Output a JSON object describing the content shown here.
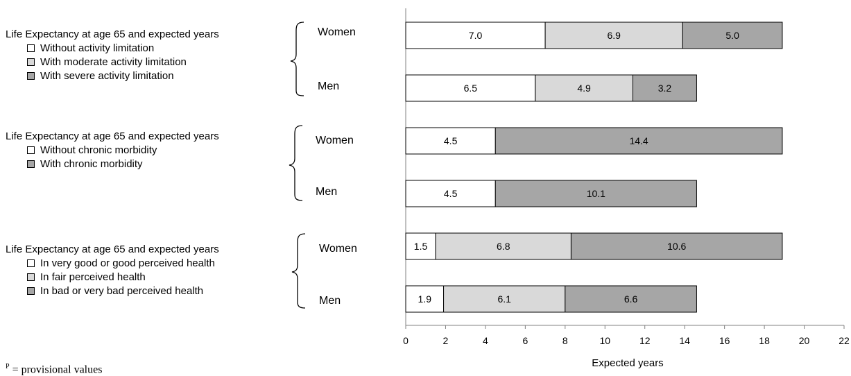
{
  "legend_groups": [
    {
      "title": "Life Expectancy at age 65 and expected years",
      "items": [
        {
          "label": "Without activity limitation",
          "color": "#ffffff"
        },
        {
          "label": "With moderate activity limitation",
          "color": "#d9d9d9"
        },
        {
          "label": "With severe activity limitation",
          "color": "#a6a6a6"
        }
      ]
    },
    {
      "title": "Life Expectancy at age 65 and expected years",
      "items": [
        {
          "label": "Without chronic morbidity",
          "color": "#ffffff"
        },
        {
          "label": "With chronic morbidity",
          "color": "#a6a6a6"
        }
      ]
    },
    {
      "title": "Life Expectancy at age 65 and expected years",
      "items": [
        {
          "label": "In very good or good perceived health",
          "color": "#ffffff"
        },
        {
          "label": "In fair perceived health",
          "color": "#d9d9d9"
        },
        {
          "label": "In bad or very bad perceived health",
          "color": "#a6a6a6"
        }
      ]
    }
  ],
  "footnote": {
    "marker": "P",
    "text": "= provisional values"
  },
  "chart_data": {
    "type": "bar",
    "orientation": "horizontal",
    "stacked": true,
    "xlabel": "Expected years",
    "xlim": [
      0,
      22
    ],
    "xticks": [
      "0",
      "2",
      "4",
      "6",
      "8",
      "10",
      "12",
      "14",
      "16",
      "18",
      "20",
      "22"
    ],
    "grid": false,
    "rows": [
      {
        "group": 0,
        "label": "Women",
        "values": [
          7.0,
          6.9,
          5.0
        ],
        "colors": [
          "#ffffff",
          "#d9d9d9",
          "#a6a6a6"
        ],
        "value_labels": [
          "7.0",
          "6.9",
          "5.0"
        ]
      },
      {
        "group": 0,
        "label": "Men",
        "values": [
          6.5,
          4.9,
          3.2
        ],
        "colors": [
          "#ffffff",
          "#d9d9d9",
          "#a6a6a6"
        ],
        "value_labels": [
          "6.5",
          "4.9",
          "3.2"
        ]
      },
      {
        "group": 1,
        "label": "Women",
        "values": [
          4.5,
          14.4
        ],
        "colors": [
          "#ffffff",
          "#a6a6a6"
        ],
        "value_labels": [
          "4.5",
          "14.4"
        ]
      },
      {
        "group": 1,
        "label": "Men",
        "values": [
          4.5,
          10.1
        ],
        "colors": [
          "#ffffff",
          "#a6a6a6"
        ],
        "value_labels": [
          "4.5",
          "10.1"
        ]
      },
      {
        "group": 2,
        "label": "Women",
        "values": [
          1.5,
          6.8,
          10.6
        ],
        "colors": [
          "#ffffff",
          "#d9d9d9",
          "#a6a6a6"
        ],
        "value_labels": [
          "1.5",
          "6.8",
          "10.6"
        ]
      },
      {
        "group": 2,
        "label": "Men",
        "values": [
          1.9,
          6.1,
          6.6
        ],
        "colors": [
          "#ffffff",
          "#d9d9d9",
          "#a6a6a6"
        ],
        "value_labels": [
          "1.9",
          "6.1",
          "6.6"
        ]
      }
    ]
  }
}
